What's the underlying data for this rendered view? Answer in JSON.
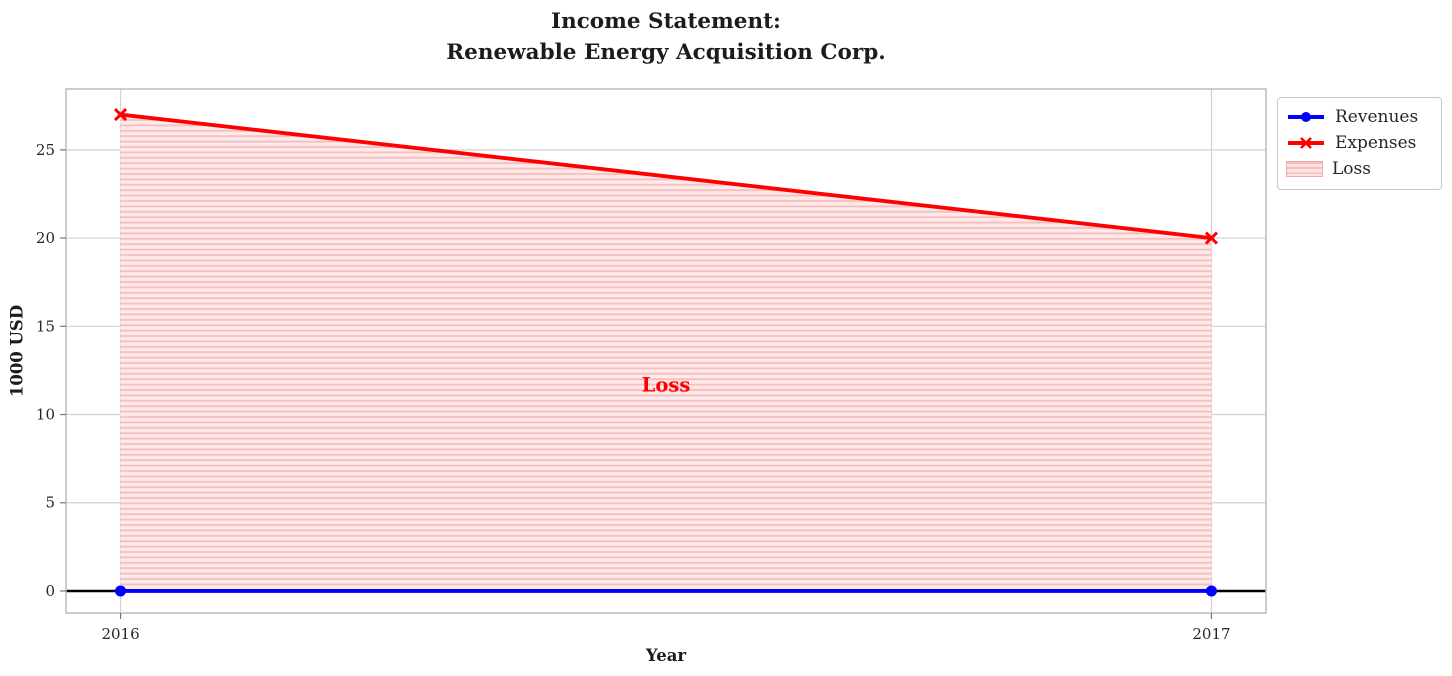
{
  "chart_data": {
    "type": "line",
    "title": "Income Statement:\nRenewable Energy Acquisition Corp.",
    "xlabel": "Year",
    "ylabel": "1000 USD",
    "x": [
      2016,
      2017
    ],
    "series": [
      {
        "name": "Revenues",
        "values": [
          0,
          0
        ],
        "color": "#0000ff",
        "marker": "circle"
      },
      {
        "name": "Expenses",
        "values": [
          27,
          20
        ],
        "color": "#ff0000",
        "marker": "x"
      }
    ],
    "loss_area": {
      "label": "Loss",
      "between": [
        "Revenues",
        "Expenses"
      ],
      "fill_color": "#fdeaea",
      "hatch_color": "#f6bebe",
      "hatch": "horizontal-lines"
    },
    "annotation": {
      "text": "Loss",
      "x": 2016.5,
      "y": 11.7,
      "color": "#ff0000"
    },
    "axhline": {
      "y": 0,
      "color": "#000000"
    },
    "xticks": [
      "2016",
      "2017"
    ],
    "xtick_values": [
      2016,
      2017
    ],
    "yticks": [
      0,
      5,
      10,
      15,
      20,
      25
    ],
    "xlim": [
      2015.95,
      2017.05
    ],
    "ylim": [
      -1.25,
      28.45
    ],
    "grid": true,
    "grid_color": "#d2d2d2",
    "frame_color": "#bfbfbf",
    "legend": {
      "position": "upper-right-outside",
      "items": [
        {
          "label": "Revenues"
        },
        {
          "label": "Expenses"
        },
        {
          "label": "Loss"
        }
      ]
    }
  }
}
